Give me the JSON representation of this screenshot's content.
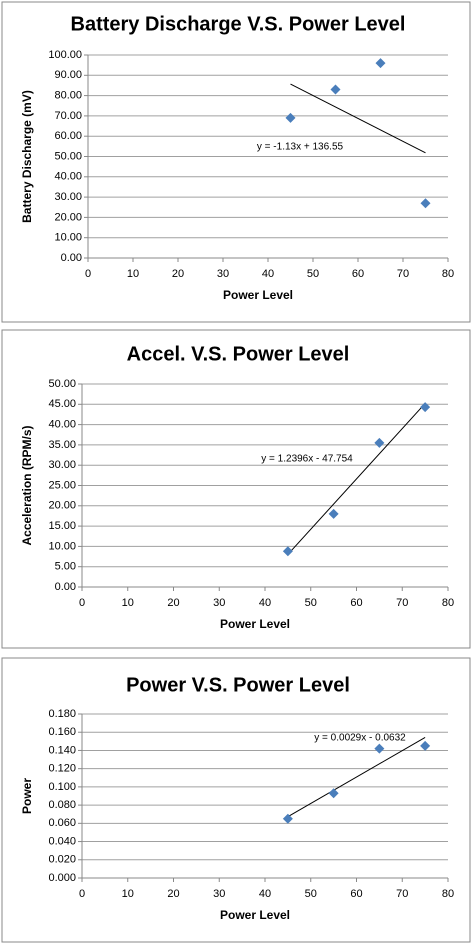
{
  "chart_data": [
    {
      "type": "scatter",
      "title": "Battery Discharge V.S. Power Level",
      "x_label": "Power Level",
      "y_label": "Battery Discharge (mV)",
      "x": [
        45,
        55,
        65,
        75
      ],
      "values": [
        69,
        83,
        96,
        27
      ],
      "color": "#4a7ebb",
      "xlim": [
        0,
        80
      ],
      "xticks": [
        0,
        10,
        20,
        30,
        40,
        50,
        60,
        70,
        80
      ],
      "ylim": [
        0,
        100
      ],
      "yticks": [
        {
          "value": 0,
          "label": "0.00"
        },
        {
          "value": 10,
          "label": "10.00"
        },
        {
          "value": 20,
          "label": "20.00"
        },
        {
          "value": 30,
          "label": "30.00"
        },
        {
          "value": 40,
          "label": "40.00"
        },
        {
          "value": 50,
          "label": "50.00"
        },
        {
          "value": 60,
          "label": "60.00"
        },
        {
          "value": 70,
          "label": "70.00"
        },
        {
          "value": 80,
          "label": "80.00"
        },
        {
          "value": 90,
          "label": "90.00"
        },
        {
          "value": 100,
          "label": "100.00"
        }
      ],
      "grid": true,
      "trendline": {
        "slope": -1.13,
        "intercept": 136.55,
        "label": "y = -1.13x + 136.55"
      }
    },
    {
      "type": "scatter",
      "title": "Accel. V.S. Power Level",
      "x_label": "Power Level",
      "y_label": "Acceleration (RPM/s)",
      "x": [
        45,
        55,
        65,
        75
      ],
      "values": [
        8.8,
        18,
        35.5,
        44.3
      ],
      "color": "#4a7ebb",
      "xlim": [
        0,
        80
      ],
      "xticks": [
        0,
        10,
        20,
        30,
        40,
        50,
        60,
        70,
        80
      ],
      "ylim": [
        0,
        50
      ],
      "yticks": [
        {
          "value": 0,
          "label": "0.00"
        },
        {
          "value": 5,
          "label": "5.00"
        },
        {
          "value": 10,
          "label": "10.00"
        },
        {
          "value": 15,
          "label": "15.00"
        },
        {
          "value": 20,
          "label": "20.00"
        },
        {
          "value": 25,
          "label": "25.00"
        },
        {
          "value": 30,
          "label": "30.00"
        },
        {
          "value": 35,
          "label": "35.00"
        },
        {
          "value": 40,
          "label": "40.00"
        },
        {
          "value": 45,
          "label": "45.00"
        },
        {
          "value": 50,
          "label": "50.00"
        }
      ],
      "grid": true,
      "trendline": {
        "slope": 1.2396,
        "intercept": -47.754,
        "label": "y = 1.2396x - 47.754"
      }
    },
    {
      "type": "scatter",
      "title": "Power V.S. Power Level",
      "x_label": "Power Level",
      "y_label": "Power",
      "x": [
        45,
        55,
        65,
        75
      ],
      "values": [
        0.065,
        0.093,
        0.142,
        0.145
      ],
      "color": "#4a7ebb",
      "xlim": [
        0,
        80
      ],
      "xticks": [
        0,
        10,
        20,
        30,
        40,
        50,
        60,
        70,
        80
      ],
      "ylim": [
        0,
        0.18
      ],
      "yticks": [
        {
          "value": 0,
          "label": "0.000"
        },
        {
          "value": 0.02,
          "label": "0.020"
        },
        {
          "value": 0.04,
          "label": "0.040"
        },
        {
          "value": 0.06,
          "label": "0.060"
        },
        {
          "value": 0.08,
          "label": "0.080"
        },
        {
          "value": 0.1,
          "label": "0.100"
        },
        {
          "value": 0.12,
          "label": "0.120"
        },
        {
          "value": 0.14,
          "label": "0.140"
        },
        {
          "value": 0.16,
          "label": "0.160"
        },
        {
          "value": 0.18,
          "label": "0.180"
        }
      ],
      "grid": true,
      "trendline": {
        "slope": 0.0029,
        "intercept": -0.0632,
        "label": "y = 0.0029x - 0.0632"
      }
    }
  ]
}
